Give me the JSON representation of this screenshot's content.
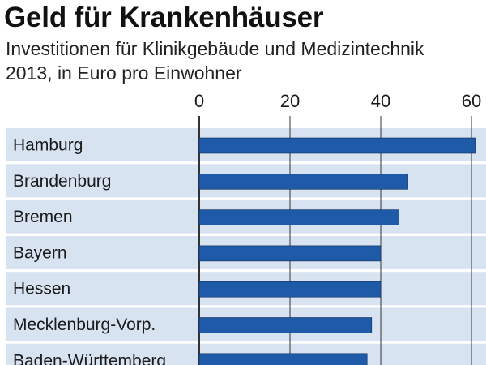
{
  "header": {
    "title": "Geld für Krankenhäuser",
    "subtitle_line1": "Investitionen für Klinikgebäude und Medizintechnik",
    "subtitle_line2": "2013, in Euro pro Einwohner"
  },
  "colors": {
    "bar": "#1f5aa8",
    "row_band": "#d8e3f2",
    "grid": "#333333",
    "text": "#1a1a1a"
  },
  "chart_data": {
    "type": "bar",
    "orientation": "horizontal",
    "title": "Geld für Krankenhäuser",
    "subtitle": "Investitionen für Klinikgebäude und Medizintechnik 2013, in Euro pro Einwohner",
    "categories": [
      "Hamburg",
      "Brandenburg",
      "Bremen",
      "Bayern",
      "Hessen",
      "Mecklenburg-Vorp.",
      "Baden-Württemberg"
    ],
    "values": [
      61,
      46,
      44,
      40,
      40,
      38,
      37
    ],
    "ticks": [
      0,
      20,
      40,
      60
    ],
    "xlim": [
      0,
      61
    ],
    "grid": true,
    "axis_position": "top"
  }
}
